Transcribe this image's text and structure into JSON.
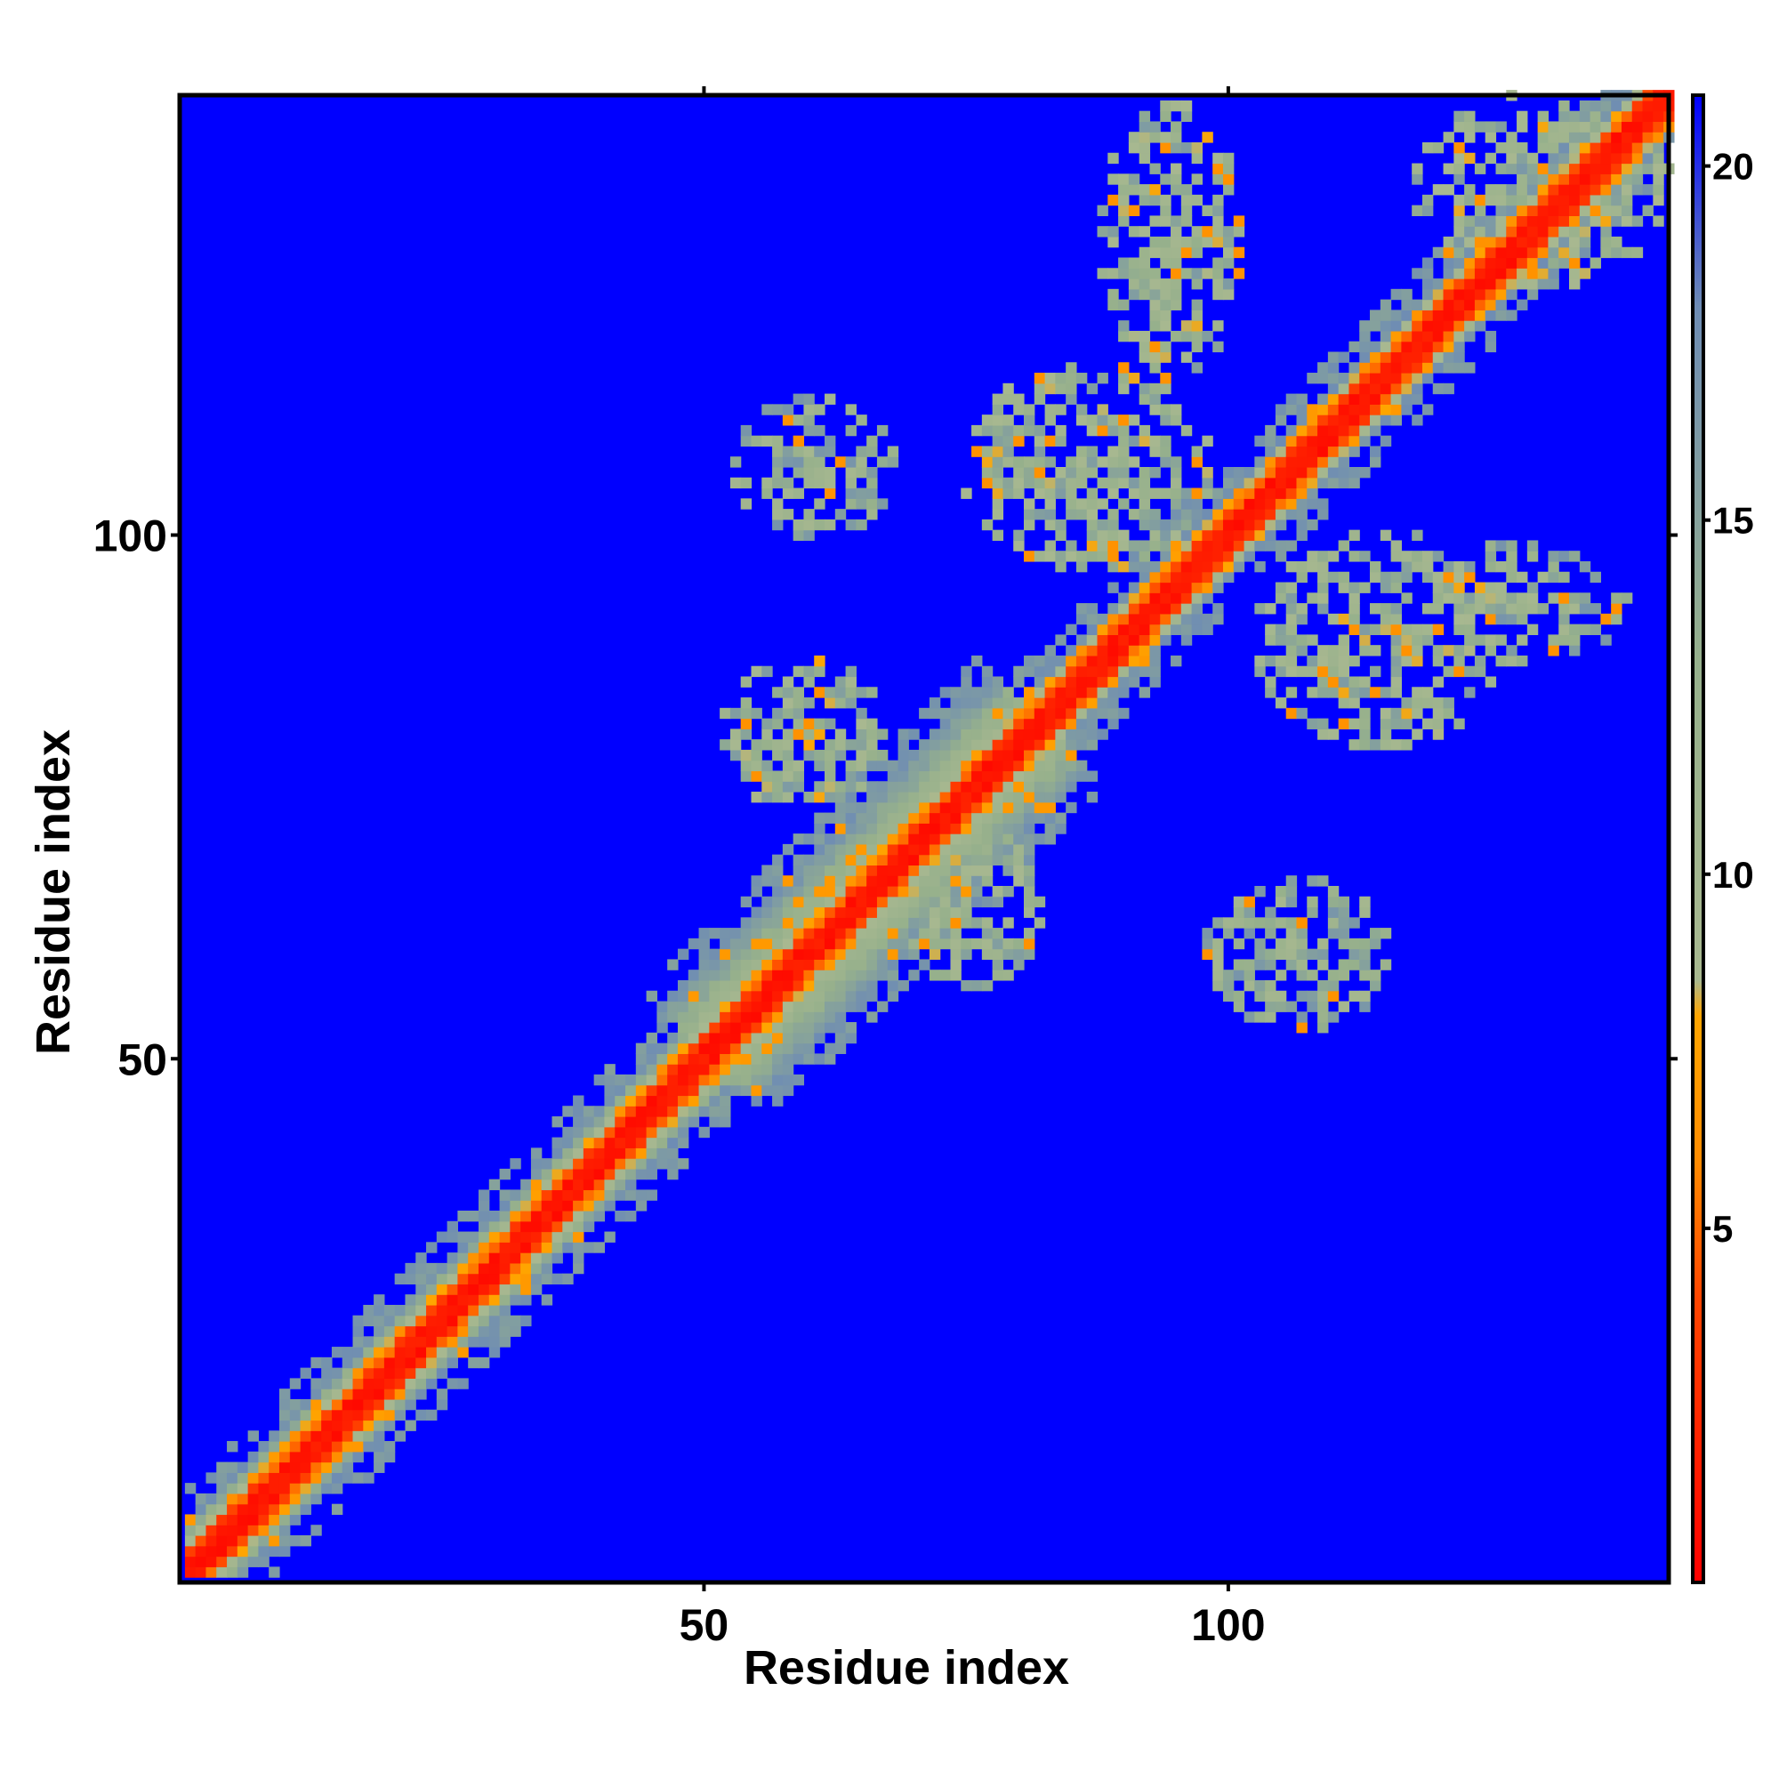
{
  "chart_data": {
    "type": "heatmap",
    "title": "",
    "xlabel": "Residue index",
    "ylabel": "Residue index",
    "n_residues": 142,
    "xlim": [
      1,
      142
    ],
    "ylim": [
      1,
      142
    ],
    "x_ticks": [
      50,
      100
    ],
    "y_ticks": [
      50,
      100
    ],
    "x_tick_labels": [
      "50",
      "100"
    ],
    "y_tick_labels": [
      "50",
      "100"
    ],
    "colorbar": {
      "range": [
        0,
        21
      ],
      "ticks": [
        5,
        10,
        15,
        20
      ],
      "tick_labels": [
        "5",
        "10",
        "15",
        "20"
      ],
      "stops": [
        {
          "value": 0,
          "color": "#ff0000"
        },
        {
          "value": 4,
          "color": "#ff4500"
        },
        {
          "value": 6,
          "color": "#ff8c00"
        },
        {
          "value": 8,
          "color": "#ffa500"
        },
        {
          "value": 8.5,
          "color": "#a8b890"
        },
        {
          "value": 13,
          "color": "#96b08c"
        },
        {
          "value": 18,
          "color": "#6e8cb4"
        },
        {
          "value": 21,
          "color": "#0000ff"
        }
      ]
    },
    "background_value": 21,
    "features": {
      "diagonal_band": [
        {
          "from": 1,
          "to": 50,
          "halfwidth": 5
        },
        {
          "from": 50,
          "to": 82,
          "halfwidth": 9
        },
        {
          "from": 82,
          "to": 142,
          "halfwidth": 4
        }
      ],
      "contact_regions": [
        {
          "xrange": [
            52,
            67
          ],
          "yrange": [
            74,
            88
          ],
          "level": 12
        },
        {
          "xrange": [
            69,
            82
          ],
          "yrange": [
            57,
            72
          ],
          "level": 12
        },
        {
          "xrange": [
            53,
            68
          ],
          "yrange": [
            100,
            113
          ],
          "level": 13
        },
        {
          "xrange": [
            98,
            115
          ],
          "yrange": [
            53,
            67
          ],
          "level": 13
        },
        {
          "xrange": [
            75,
            98
          ],
          "yrange": [
            97,
            116
          ],
          "level": 12
        },
        {
          "xrange": [
            103,
            126
          ],
          "yrange": [
            80,
            100
          ],
          "level": 12
        },
        {
          "xrange": [
            88,
            101
          ],
          "yrange": [
            115,
            141
          ],
          "level": 12
        },
        {
          "xrange": [
            114,
            138
          ],
          "yrange": [
            88,
            99
          ],
          "level": 13
        },
        {
          "xrange": [
            118,
            142
          ],
          "yrange": [
            124,
            142
          ],
          "level": 12
        }
      ]
    }
  }
}
